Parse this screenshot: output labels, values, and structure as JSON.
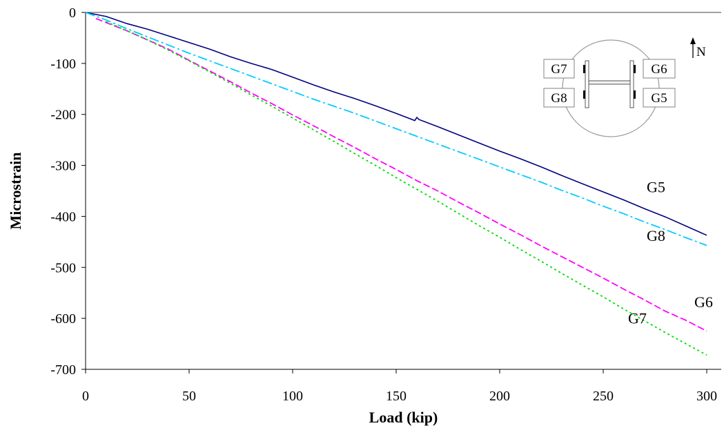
{
  "chart_data": {
    "type": "line",
    "xlabel": "Load (kip)",
    "ylabel": "Microstrain",
    "xlim": [
      0,
      310
    ],
    "ylim": [
      -700,
      0
    ],
    "xticks": [
      0,
      50,
      100,
      150,
      200,
      250,
      300
    ],
    "yticks": [
      0,
      -100,
      -200,
      -300,
      -400,
      -500,
      -600,
      -700
    ],
    "grid": false,
    "legend": "none (series labelled directly on the plot)",
    "series": [
      {
        "name": "G5",
        "color": "#000080",
        "dash": "solid",
        "x": [
          0,
          10,
          20,
          30,
          40,
          50,
          60,
          70,
          80,
          90,
          100,
          110,
          120,
          130,
          140,
          150,
          159,
          160,
          161,
          170,
          180,
          190,
          200,
          210,
          220,
          230,
          240,
          250,
          260,
          270,
          280,
          290,
          300
        ],
        "y": [
          0,
          -8,
          -22,
          -33,
          -46,
          -59,
          -72,
          -87,
          -100,
          -112,
          -127,
          -142,
          -156,
          -169,
          -183,
          -198,
          -212,
          -206,
          -210,
          -224,
          -240,
          -256,
          -272,
          -287,
          -303,
          -320,
          -336,
          -352,
          -368,
          -385,
          -401,
          -419,
          -437
        ]
      },
      {
        "name": "G8",
        "color": "#00CCFF",
        "dash": "dash-dot",
        "x": [
          0,
          10,
          20,
          30,
          40,
          50,
          60,
          70,
          80,
          90,
          100,
          110,
          120,
          130,
          140,
          150,
          160,
          170,
          180,
          190,
          200,
          210,
          220,
          230,
          240,
          250,
          260,
          270,
          280,
          290,
          300
        ],
        "y": [
          0,
          -15,
          -32,
          -48,
          -64,
          -80,
          -95,
          -110,
          -125,
          -140,
          -155,
          -170,
          -184,
          -198,
          -213,
          -228,
          -243,
          -258,
          -273,
          -288,
          -303,
          -318,
          -333,
          -349,
          -364,
          -380,
          -395,
          -411,
          -426,
          -442,
          -457
        ]
      },
      {
        "name": "G6",
        "color": "#FF00FF",
        "dash": "dashed",
        "x": [
          5,
          10,
          20,
          30,
          40,
          50,
          60,
          70,
          80,
          90,
          100,
          110,
          120,
          130,
          140,
          150,
          160,
          170,
          180,
          190,
          200,
          210,
          220,
          230,
          240,
          250,
          260,
          270,
          280,
          290,
          300
        ],
        "y": [
          -12,
          -20,
          -36,
          -54,
          -72,
          -94,
          -115,
          -136,
          -158,
          -179,
          -201,
          -222,
          -244,
          -265,
          -287,
          -308,
          -330,
          -350,
          -372,
          -393,
          -415,
          -436,
          -458,
          -479,
          -500,
          -521,
          -543,
          -564,
          -586,
          -604,
          -625
        ]
      },
      {
        "name": "G7",
        "color": "#00DD00",
        "dash": "dotted",
        "x": [
          10,
          20,
          30,
          40,
          50,
          60,
          70,
          80,
          90,
          100,
          110,
          120,
          130,
          140,
          150,
          160,
          170,
          180,
          190,
          200,
          210,
          220,
          230,
          240,
          250,
          260,
          270,
          280,
          290,
          300
        ],
        "y": [
          -18,
          -36,
          -54,
          -74,
          -95,
          -117,
          -139,
          -162,
          -184,
          -207,
          -230,
          -253,
          -277,
          -300,
          -324,
          -347,
          -370,
          -394,
          -418,
          -441,
          -465,
          -488,
          -512,
          -535,
          -558,
          -582,
          -605,
          -628,
          -650,
          -672
        ]
      }
    ],
    "annotations": [
      {
        "text": "G5",
        "x": 271,
        "y": -353
      },
      {
        "text": "G8",
        "x": 271,
        "y": -448
      },
      {
        "text": "G6",
        "x": 294,
        "y": -578
      },
      {
        "text": "G7",
        "x": 262,
        "y": -610
      }
    ],
    "inset": {
      "gauge_labels": [
        "G7",
        "G6",
        "G8",
        "G5"
      ],
      "north_label": "N",
      "description_colors": {
        "outline": "#999999",
        "box": "#808080"
      }
    }
  }
}
